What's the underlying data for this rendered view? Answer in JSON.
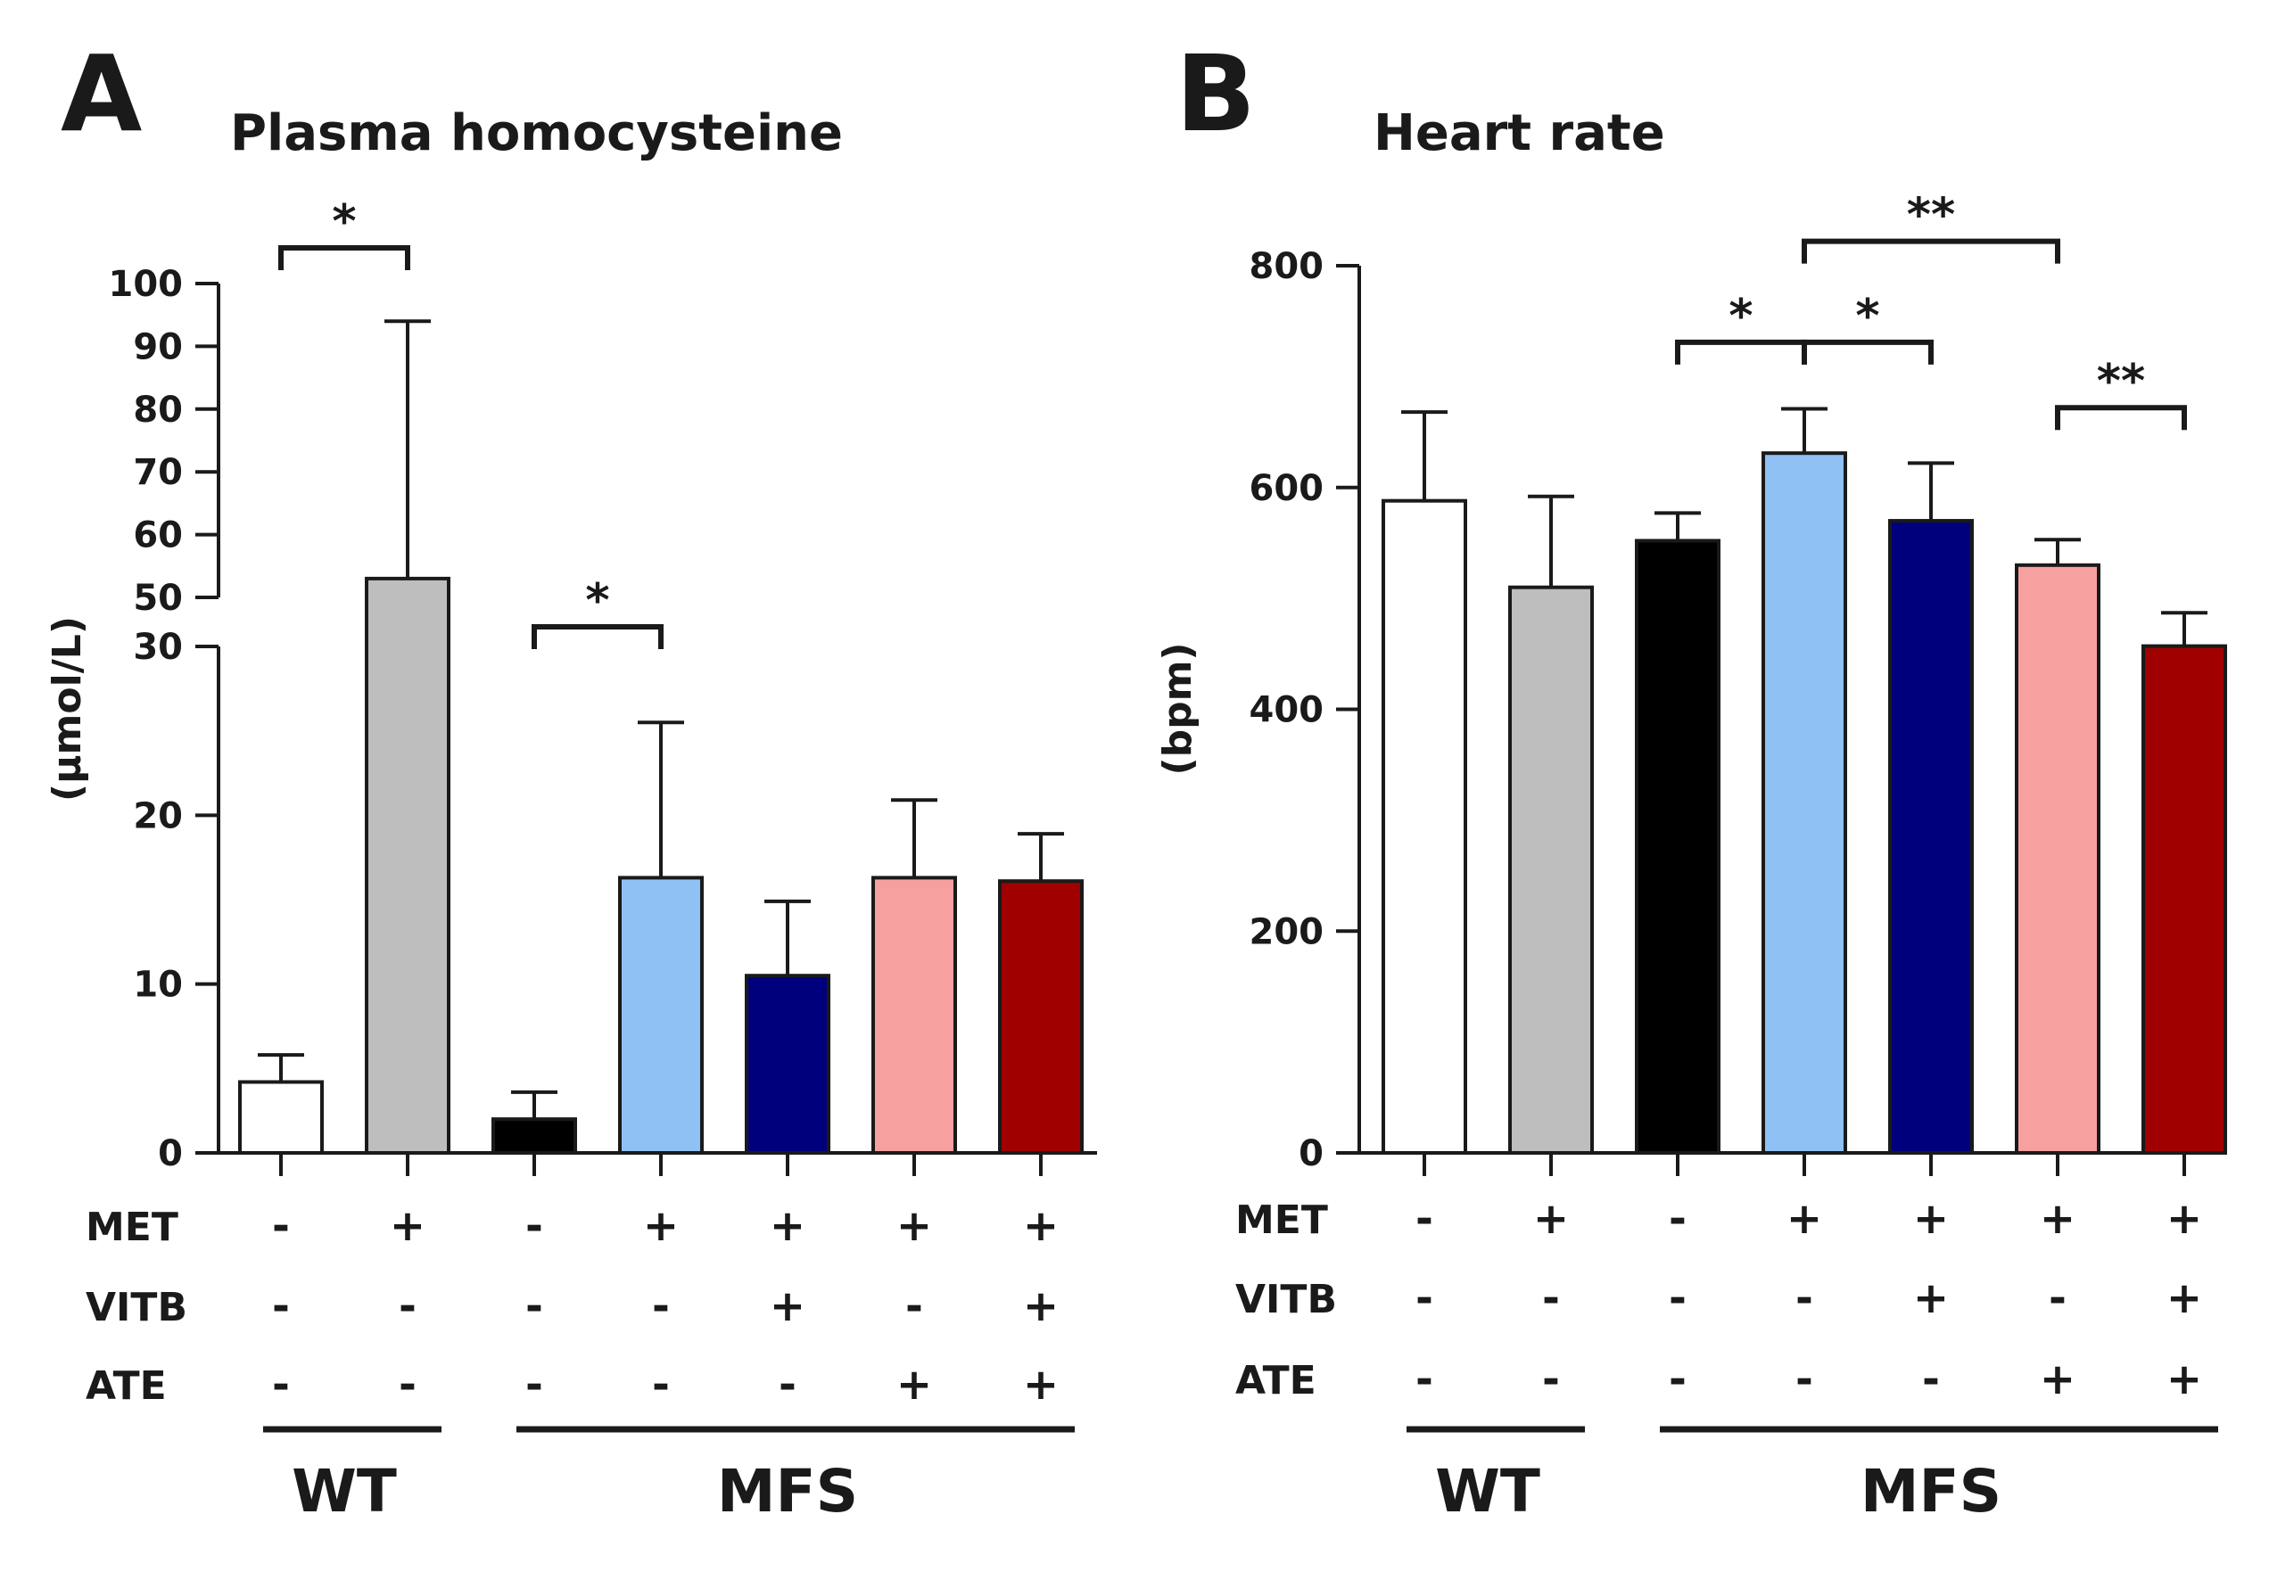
{
  "chart_data": [
    {
      "type": "bar",
      "panel": "A",
      "title": "Plasma homocysteine",
      "ylabel": "(µmol/L)",
      "axis_break": [
        30,
        50
      ],
      "ylim": [
        0,
        100
      ],
      "yticks_lower": [
        0,
        10,
        20,
        30
      ],
      "yticks_upper": [
        50,
        60,
        70,
        80,
        90,
        100
      ],
      "bars": [
        {
          "value": 4.2,
          "error": 1.6,
          "color": "#ffffff"
        },
        {
          "value": 53,
          "error": 41,
          "color": "#bebebe"
        },
        {
          "value": 2.0,
          "error": 1.6,
          "color": "#000000"
        },
        {
          "value": 16.3,
          "error": 9.2,
          "color": "#8fc1f5"
        },
        {
          "value": 10.5,
          "error": 4.4,
          "color": "#00007d"
        },
        {
          "value": 16.3,
          "error": 4.6,
          "color": "#f7a0a0"
        },
        {
          "value": 16.1,
          "error": 2.8,
          "color": "#a00000"
        }
      ],
      "significance": [
        {
          "from": 0,
          "to": 1,
          "label": "*"
        },
        {
          "from": 2,
          "to": 3,
          "label": "*"
        }
      ],
      "treatments": [
        {
          "label": "MET",
          "signs": [
            "-",
            "+",
            "-",
            "+",
            "+",
            "+",
            "+"
          ]
        },
        {
          "label": "VITB",
          "signs": [
            "-",
            "-",
            "-",
            "-",
            "+",
            "-",
            "+"
          ]
        },
        {
          "label": "ATE",
          "signs": [
            "-",
            "-",
            "-",
            "-",
            "-",
            "+",
            "+"
          ]
        }
      ],
      "groups": [
        {
          "label": "WT",
          "from": 0,
          "to": 1
        },
        {
          "label": "MFS",
          "from": 2,
          "to": 6
        }
      ]
    },
    {
      "type": "bar",
      "panel": "B",
      "title": "Heart rate",
      "ylabel": "(bpm)",
      "ylim": [
        0,
        800
      ],
      "yticks": [
        0,
        200,
        400,
        600,
        800
      ],
      "bars": [
        {
          "value": 588,
          "error": 80,
          "color": "#ffffff"
        },
        {
          "value": 510,
          "error": 82,
          "color": "#bebebe"
        },
        {
          "value": 552,
          "error": 25,
          "color": "#000000"
        },
        {
          "value": 631,
          "error": 40,
          "color": "#8fc1f5"
        },
        {
          "value": 570,
          "error": 52,
          "color": "#00007d"
        },
        {
          "value": 530,
          "error": 23,
          "color": "#f7a0a0"
        },
        {
          "value": 457,
          "error": 30,
          "color": "#a00000"
        }
      ],
      "significance": [
        {
          "from": 2,
          "to": 3,
          "label": "*",
          "level": 731
        },
        {
          "from": 3,
          "to": 4,
          "label": "*",
          "level": 731
        },
        {
          "from": 3,
          "to": 5,
          "label": "**",
          "level": 822
        },
        {
          "from": 5,
          "to": 6,
          "label": "**",
          "level": 672
        }
      ],
      "treatments": [
        {
          "label": "MET",
          "signs": [
            "-",
            "+",
            "-",
            "+",
            "+",
            "+",
            "+"
          ]
        },
        {
          "label": "VITB",
          "signs": [
            "-",
            "-",
            "-",
            "-",
            "+",
            "-",
            "+"
          ]
        },
        {
          "label": "ATE",
          "signs": [
            "-",
            "-",
            "-",
            "-",
            "-",
            "+",
            "+"
          ]
        }
      ],
      "groups": [
        {
          "label": "WT",
          "from": 0,
          "to": 1
        },
        {
          "label": "MFS",
          "from": 2,
          "to": 6
        }
      ]
    }
  ]
}
